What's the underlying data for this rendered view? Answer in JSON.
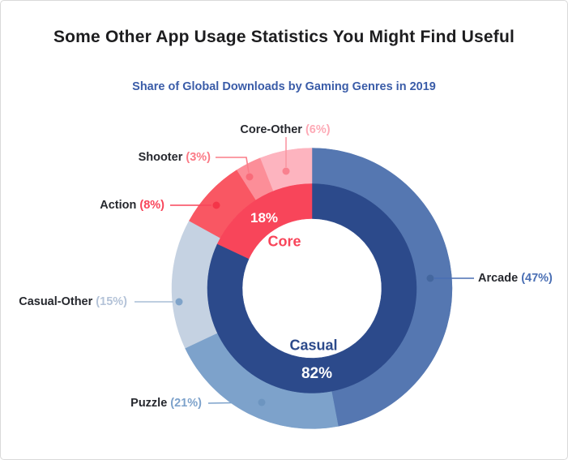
{
  "page": {
    "title": "Some Other App Usage Statistics You Might Find Useful"
  },
  "chart_data": {
    "type": "pie",
    "subtype": "nested-donut",
    "title": "Share of Global Downloads by Gaming Genres in 2019",
    "title_color": "#3a5ca8",
    "legend_position": "callout-labels",
    "start_angle": "12-o'clock, clockwise",
    "outer_ring": {
      "name": "gaming-genres",
      "segments": [
        {
          "label": "Arcade",
          "value": 47,
          "unit": "%",
          "color": "#5577b1",
          "pct_color": "#4a6fb4",
          "line_color": "#4a6fb4",
          "dot_color": "#44679f"
        },
        {
          "label": "Puzzle",
          "value": 21,
          "unit": "%",
          "color": "#7da2cb",
          "pct_color": "#7da2cb",
          "line_color": "#7da2cb",
          "dot_color": "#6d95c0"
        },
        {
          "label": "Casual-Other",
          "value": 15,
          "unit": "%",
          "color": "#c5d2e2",
          "pct_color": "#b4c3d8",
          "line_color": "#a9bdd6",
          "dot_color": "#7fa3c9"
        },
        {
          "label": "Action",
          "value": 8,
          "unit": "%",
          "color": "#f95763",
          "pct_color": "#f8455a",
          "line_color": "#f8455a",
          "dot_color": "#f43549"
        },
        {
          "label": "Shooter",
          "value": 3,
          "unit": "%",
          "color": "#fc8e98",
          "pct_color": "#fb7a86",
          "line_color": "#fa7d89",
          "dot_color": "#f96b79"
        },
        {
          "label": "Core-Other",
          "value": 6,
          "unit": "%",
          "color": "#fdb4bf",
          "pct_color": "#fdaab6",
          "line_color": "#fa97a3",
          "dot_color": "#f9818f"
        }
      ]
    },
    "inner_ring": {
      "name": "genre-groups",
      "segments": [
        {
          "label": "Casual",
          "value": 82,
          "unit": "%",
          "color": "#2c4a8b",
          "label_color": "#2c4a8b",
          "value_text_color": "#ffffff"
        },
        {
          "label": "Core",
          "value": 18,
          "unit": "%",
          "color": "#f8455a",
          "label_color": "#f8455a",
          "value_text_color": "#ffffff"
        }
      ]
    }
  }
}
